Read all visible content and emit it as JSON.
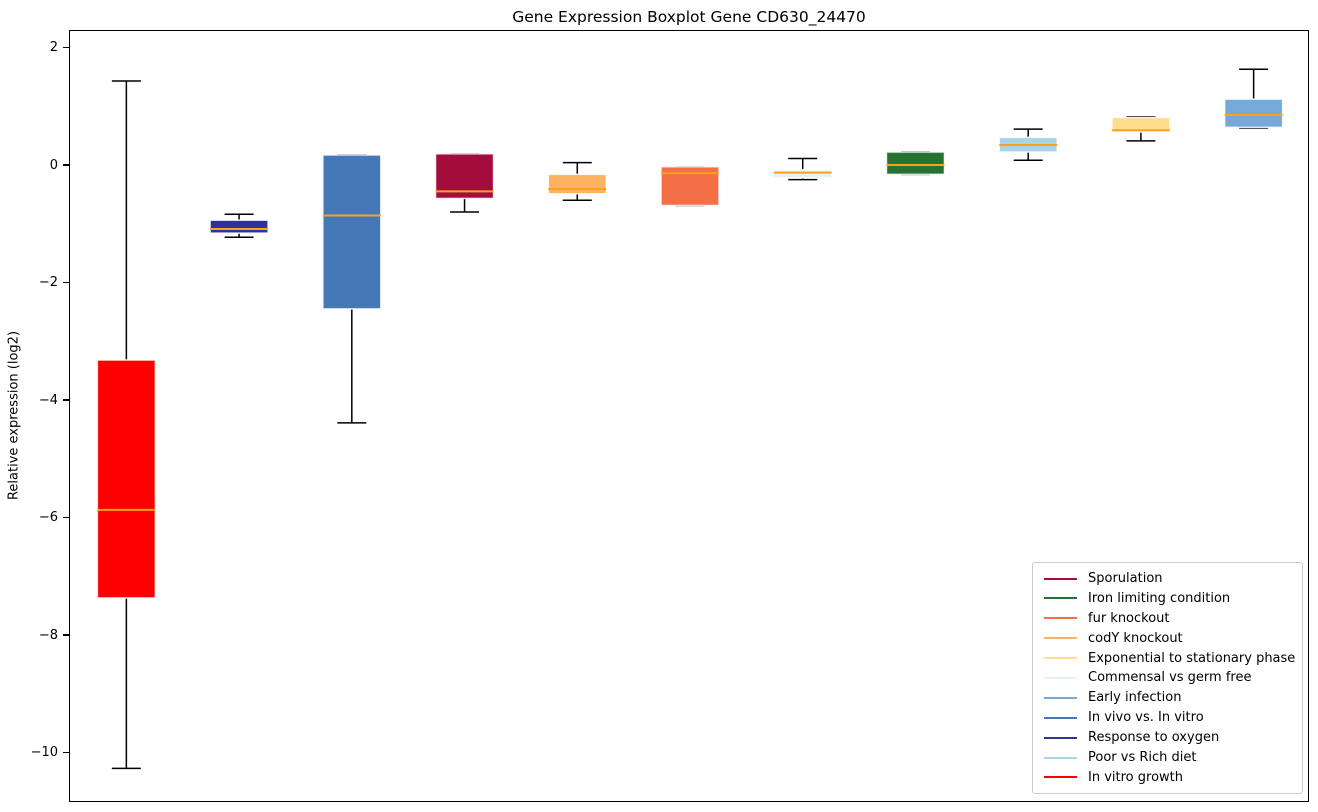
{
  "chart_data": {
    "type": "boxplot",
    "title": "Gene Expression Boxplot Gene CD630_24470",
    "ylabel": "Relative expression (log2)",
    "ylim": [
      -10.84,
      2.3
    ],
    "yticks": [
      2,
      0,
      -2,
      -4,
      -6,
      -8,
      -10
    ],
    "ytick_labels": [
      "2",
      "0",
      "−2",
      "−4",
      "−6",
      "−8",
      "−10"
    ],
    "grid": false,
    "median_color": "#FFA11C",
    "whisker_color": "#000000",
    "groups": [
      {
        "label": "In vitro growth",
        "color": "#FF0000",
        "whisker_low": -10.25,
        "q1": -7.35,
        "median": -5.85,
        "q3": -3.3,
        "whisker_high": 1.45
      },
      {
        "label": "Response to oxygen",
        "color": "#303396",
        "whisker_low": -1.21,
        "q1": -1.14,
        "median": -1.07,
        "q3": -0.92,
        "whisker_high": -0.82
      },
      {
        "label": "In vivo vs. In vitro",
        "color": "#4677B6",
        "whisker_low": -4.37,
        "q1": -2.43,
        "median": -0.84,
        "q3": 0.19,
        "whisker_high": 0.19
      },
      {
        "label": "Sporulation",
        "color": "#A30D3C",
        "whisker_low": -0.78,
        "q1": -0.55,
        "median": -0.43,
        "q3": 0.21,
        "whisker_high": 0.21
      },
      {
        "label": "codY knockout",
        "color": "#FDB262",
        "whisker_low": -0.58,
        "q1": -0.47,
        "median": -0.39,
        "q3": -0.14,
        "whisker_high": 0.06
      },
      {
        "label": "fur knockout",
        "color": "#F46E46",
        "whisker_low": -0.67,
        "q1": -0.67,
        "median": -0.12,
        "q3": -0.01,
        "whisker_high": -0.01
      },
      {
        "label": "Commensal vs germ free",
        "color": "#E3F2F7",
        "whisker_low": -0.23,
        "q1": -0.2,
        "median": -0.11,
        "q3": -0.06,
        "whisker_high": 0.13
      },
      {
        "label": "Iron limiting condition",
        "color": "#28722F",
        "whisker_low": -0.14,
        "q1": -0.14,
        "median": 0.02,
        "q3": 0.24,
        "whisker_high": 0.24
      },
      {
        "label": "Poor vs Rich diet",
        "color": "#A9D5E8",
        "whisker_low": 0.1,
        "q1": 0.24,
        "median": 0.36,
        "q3": 0.49,
        "whisker_high": 0.63
      },
      {
        "label": "Exponential to stationary phase",
        "color": "#FFDF8D",
        "whisker_low": 0.43,
        "q1": 0.58,
        "median": 0.61,
        "q3": 0.83,
        "whisker_high": 0.84
      },
      {
        "label": "Early infection",
        "color": "#74A9D8",
        "whisker_low": 0.65,
        "q1": 0.66,
        "median": 0.87,
        "q3": 1.14,
        "whisker_high": 1.65
      }
    ],
    "legend": {
      "position": "lower right",
      "entries": [
        {
          "label": "Sporulation",
          "color": "#A30D3C"
        },
        {
          "label": "Iron limiting condition",
          "color": "#28722F"
        },
        {
          "label": "fur knockout",
          "color": "#F46E46"
        },
        {
          "label": "codY knockout",
          "color": "#FDB262"
        },
        {
          "label": "Exponential to stationary phase",
          "color": "#FFDF8D"
        },
        {
          "label": "Commensal vs germ free",
          "color": "#E3F2F7"
        },
        {
          "label": "Early infection",
          "color": "#74A9D8"
        },
        {
          "label": "In vivo vs. In vitro",
          "color": "#4677B6"
        },
        {
          "label": "Response to oxygen",
          "color": "#303396"
        },
        {
          "label": "Poor vs Rich diet",
          "color": "#A9D5E8"
        },
        {
          "label": "In vitro growth",
          "color": "#FF0000"
        }
      ]
    }
  }
}
